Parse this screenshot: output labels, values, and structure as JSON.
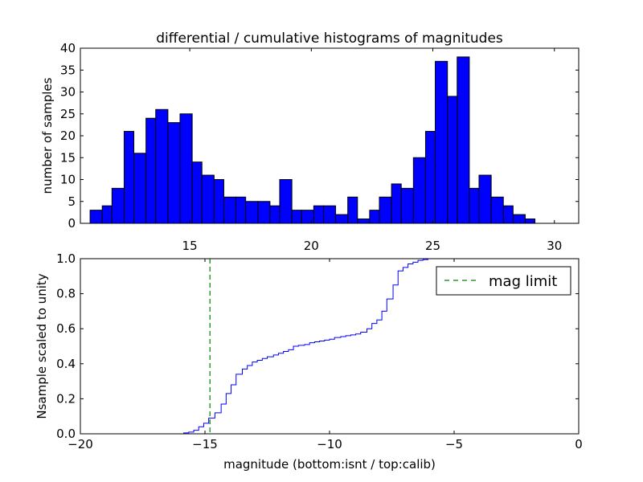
{
  "chart_data": [
    {
      "type": "bar",
      "title": "differential / cumulative histograms of magnitudes",
      "ylabel": "number of samples",
      "xlim": [
        10.5,
        31
      ],
      "ylim": [
        0,
        40
      ],
      "xticks": [
        15,
        20,
        25,
        30
      ],
      "yticks": [
        0,
        5,
        10,
        15,
        20,
        25,
        30,
        35,
        40
      ],
      "bar_color": "#0000ff",
      "bins": [
        {
          "x0": 10.9,
          "x1": 11.4,
          "count": 3
        },
        {
          "x0": 11.4,
          "x1": 11.8,
          "count": 4
        },
        {
          "x0": 11.8,
          "x1": 12.3,
          "count": 8
        },
        {
          "x0": 12.3,
          "x1": 12.7,
          "count": 21
        },
        {
          "x0": 12.7,
          "x1": 13.2,
          "count": 16
        },
        {
          "x0": 13.2,
          "x1": 13.6,
          "count": 24
        },
        {
          "x0": 13.6,
          "x1": 14.1,
          "count": 26
        },
        {
          "x0": 14.1,
          "x1": 14.6,
          "count": 23
        },
        {
          "x0": 14.6,
          "x1": 15.1,
          "count": 25
        },
        {
          "x0": 15.1,
          "x1": 15.5,
          "count": 14
        },
        {
          "x0": 15.5,
          "x1": 16.0,
          "count": 11
        },
        {
          "x0": 16.0,
          "x1": 16.4,
          "count": 10
        },
        {
          "x0": 16.4,
          "x1": 16.9,
          "count": 6
        },
        {
          "x0": 16.9,
          "x1": 17.3,
          "count": 6
        },
        {
          "x0": 17.3,
          "x1": 17.8,
          "count": 5
        },
        {
          "x0": 17.8,
          "x1": 18.3,
          "count": 5
        },
        {
          "x0": 18.3,
          "x1": 18.7,
          "count": 4
        },
        {
          "x0": 18.7,
          "x1": 19.2,
          "count": 10
        },
        {
          "x0": 19.2,
          "x1": 19.6,
          "count": 3
        },
        {
          "x0": 19.6,
          "x1": 20.1,
          "count": 3
        },
        {
          "x0": 20.1,
          "x1": 20.5,
          "count": 4
        },
        {
          "x0": 20.5,
          "x1": 21.0,
          "count": 4
        },
        {
          "x0": 21.0,
          "x1": 21.5,
          "count": 2
        },
        {
          "x0": 21.5,
          "x1": 21.9,
          "count": 6
        },
        {
          "x0": 21.9,
          "x1": 22.4,
          "count": 1
        },
        {
          "x0": 22.4,
          "x1": 22.8,
          "count": 3
        },
        {
          "x0": 22.8,
          "x1": 23.3,
          "count": 6
        },
        {
          "x0": 23.3,
          "x1": 23.7,
          "count": 9
        },
        {
          "x0": 23.7,
          "x1": 24.2,
          "count": 8
        },
        {
          "x0": 24.2,
          "x1": 24.7,
          "count": 15
        },
        {
          "x0": 24.7,
          "x1": 25.1,
          "count": 21
        },
        {
          "x0": 25.1,
          "x1": 25.6,
          "count": 37
        },
        {
          "x0": 25.6,
          "x1": 26.0,
          "count": 29
        },
        {
          "x0": 26.0,
          "x1": 26.5,
          "count": 38
        },
        {
          "x0": 26.5,
          "x1": 26.9,
          "count": 8
        },
        {
          "x0": 26.9,
          "x1": 27.4,
          "count": 11
        },
        {
          "x0": 27.4,
          "x1": 27.9,
          "count": 6
        },
        {
          "x0": 27.9,
          "x1": 28.3,
          "count": 4
        },
        {
          "x0": 28.3,
          "x1": 28.8,
          "count": 2
        },
        {
          "x0": 28.8,
          "x1": 29.2,
          "count": 1
        }
      ]
    },
    {
      "type": "line",
      "xlabel": "magnitude (bottom:isnt / top:calib)",
      "ylabel": "Nsample scaled to unity",
      "xlim": [
        -20,
        0
      ],
      "ylim": [
        0,
        1.0
      ],
      "xticks": [
        -20,
        -15,
        -10,
        -5,
        0
      ],
      "xtick_labels": [
        "−20",
        "−15",
        "−10",
        "−5",
        "0"
      ],
      "yticks": [
        0.0,
        0.2,
        0.4,
        0.6,
        0.8,
        1.0
      ],
      "ytick_labels": [
        "0.0",
        "0.2",
        "0.4",
        "0.6",
        "0.8",
        "1.0"
      ],
      "legend": {
        "position": "top-right",
        "label": "mag limit"
      },
      "mag_limit": {
        "x": -14.8,
        "color": "#008000"
      },
      "series": [
        {
          "color": "#0000ff",
          "step": true,
          "x": [
            -20,
            -15.85,
            -15.65,
            -15.45,
            -15.25,
            -15.05,
            -14.85,
            -14.6,
            -14.35,
            -14.15,
            -13.95,
            -13.75,
            -13.5,
            -13.3,
            -13.1,
            -12.9,
            -12.7,
            -12.5,
            -12.25,
            -12.05,
            -11.85,
            -11.65,
            -11.45,
            -11.25,
            -11.0,
            -10.8,
            -10.6,
            -10.4,
            -10.2,
            -10.0,
            -9.8,
            -9.55,
            -9.35,
            -9.15,
            -8.95,
            -8.75,
            -8.5,
            -8.3,
            -8.1,
            -7.9,
            -7.7,
            -7.45,
            -7.25,
            -7.05,
            -6.85,
            -6.65,
            -6.45,
            -6.25,
            -6.05,
            0
          ],
          "y": [
            0,
            0.005,
            0.01,
            0.02,
            0.04,
            0.06,
            0.09,
            0.12,
            0.17,
            0.23,
            0.28,
            0.34,
            0.37,
            0.39,
            0.41,
            0.42,
            0.43,
            0.44,
            0.45,
            0.46,
            0.47,
            0.48,
            0.5,
            0.505,
            0.51,
            0.52,
            0.525,
            0.53,
            0.535,
            0.54,
            0.55,
            0.555,
            0.56,
            0.565,
            0.57,
            0.58,
            0.6,
            0.63,
            0.65,
            0.7,
            0.77,
            0.85,
            0.93,
            0.95,
            0.97,
            0.98,
            0.99,
            0.995,
            1.0,
            1.0
          ]
        }
      ]
    }
  ]
}
